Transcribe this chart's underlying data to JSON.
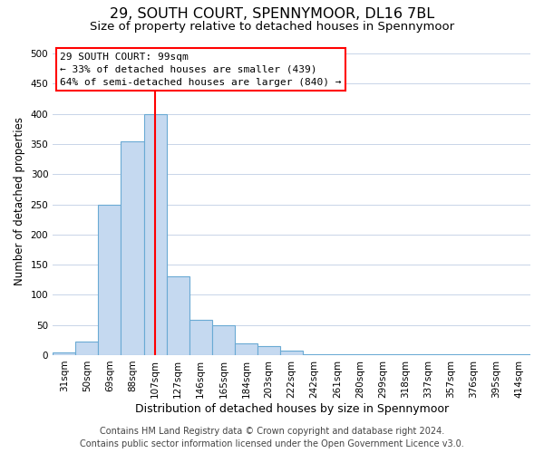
{
  "title": "29, SOUTH COURT, SPENNYMOOR, DL16 7BL",
  "subtitle": "Size of property relative to detached houses in Spennymoor",
  "xlabel": "Distribution of detached houses by size in Spennymoor",
  "ylabel": "Number of detached properties",
  "footer_line1": "Contains HM Land Registry data © Crown copyright and database right 2024.",
  "footer_line2": "Contains public sector information licensed under the Open Government Licence v3.0.",
  "bin_labels": [
    "31sqm",
    "50sqm",
    "69sqm",
    "88sqm",
    "107sqm",
    "127sqm",
    "146sqm",
    "165sqm",
    "184sqm",
    "203sqm",
    "222sqm",
    "242sqm",
    "261sqm",
    "280sqm",
    "299sqm",
    "318sqm",
    "337sqm",
    "357sqm",
    "376sqm",
    "395sqm",
    "414sqm"
  ],
  "bar_heights": [
    5,
    23,
    250,
    355,
    400,
    130,
    58,
    50,
    20,
    15,
    8,
    2,
    2,
    2,
    2,
    2,
    2,
    2,
    2,
    2,
    2
  ],
  "bar_color": "#c5d9f0",
  "bar_edgecolor": "#6aaad4",
  "ylim": [
    0,
    510
  ],
  "yticks": [
    0,
    50,
    100,
    150,
    200,
    250,
    300,
    350,
    400,
    450,
    500
  ],
  "property_label": "29 SOUTH COURT: 99sqm",
  "annotation_line1": "← 33% of detached houses are smaller (439)",
  "annotation_line2": "64% of semi-detached houses are larger (840) →",
  "vline_bin_index": 4,
  "background_color": "#ffffff",
  "grid_color": "#c8d4e8",
  "title_fontsize": 11.5,
  "subtitle_fontsize": 9.5,
  "xlabel_fontsize": 9,
  "ylabel_fontsize": 8.5,
  "tick_fontsize": 7.5,
  "annot_fontsize": 8,
  "footer_fontsize": 7
}
